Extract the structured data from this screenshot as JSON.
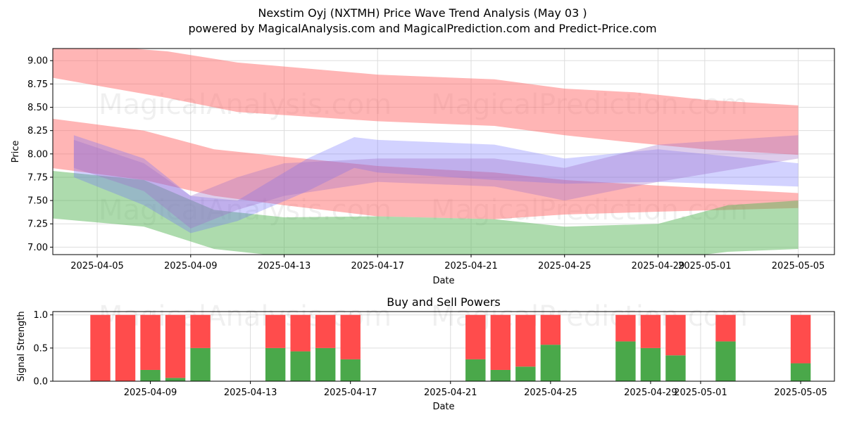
{
  "title": "Nexstim Oyj (NXTMH) Price Wave Trend Analysis (May 03 )",
  "subtitle": "powered by MagicalAnalysis.com and MagicalPrediction.com and Predict-Price.com",
  "watermarks": [
    "MagicalAnalysis.com",
    "MagicalPrediction.com"
  ],
  "colors": {
    "red_band": "#ff6b6b",
    "green_band": "#5cb85c",
    "blue_band": "#6b6bff",
    "buy": "#4aa84a",
    "sell": "#ff4c4c"
  },
  "chart_data": [
    {
      "type": "area",
      "title": "",
      "xlabel": "Date",
      "ylabel": "Price",
      "ylim": [
        6.92,
        9.13
      ],
      "xlim": [
        "2025-04-03",
        "2025-05-06"
      ],
      "grid": true,
      "x_ticks": [
        "2025-04-05",
        "2025-04-09",
        "2025-04-13",
        "2025-04-17",
        "2025-04-21",
        "2025-04-25",
        "2025-04-29",
        "2025-05-01",
        "2025-05-05"
      ],
      "y_ticks": [
        "7.00",
        "7.25",
        "7.50",
        "7.75",
        "8.00",
        "8.25",
        "8.50",
        "8.75",
        "9.00"
      ],
      "bands": [
        {
          "color": "red",
          "dates": [
            "2025-04-03",
            "2025-04-08",
            "2025-04-11",
            "2025-04-17",
            "2025-04-22",
            "2025-04-25",
            "2025-04-28",
            "2025-05-01",
            "2025-05-05"
          ],
          "upper": [
            9.2,
            9.1,
            8.98,
            8.85,
            8.8,
            8.7,
            8.66,
            8.58,
            8.52
          ],
          "lower": [
            8.82,
            8.6,
            8.45,
            8.35,
            8.3,
            8.2,
            8.12,
            8.05,
            7.99
          ]
        },
        {
          "color": "red",
          "dates": [
            "2025-04-03",
            "2025-04-07",
            "2025-04-10",
            "2025-04-13",
            "2025-04-17",
            "2025-04-22",
            "2025-04-25",
            "2025-04-29",
            "2025-05-05"
          ],
          "upper": [
            8.38,
            8.25,
            8.05,
            7.97,
            7.87,
            7.8,
            7.72,
            7.66,
            7.58
          ],
          "lower": [
            7.85,
            7.72,
            7.55,
            7.45,
            7.33,
            7.3,
            7.35,
            7.38,
            7.42
          ]
        },
        {
          "color": "green",
          "dates": [
            "2025-04-03",
            "2025-04-07",
            "2025-04-10",
            "2025-04-13",
            "2025-04-17",
            "2025-04-22",
            "2025-04-25",
            "2025-04-29",
            "2025-05-02",
            "2025-05-05"
          ],
          "upper": [
            7.82,
            7.72,
            7.4,
            7.32,
            7.33,
            7.3,
            7.22,
            7.25,
            7.45,
            7.5
          ],
          "lower": [
            7.31,
            7.22,
            6.98,
            6.9,
            6.88,
            6.85,
            6.86,
            6.86,
            6.95,
            6.98
          ]
        },
        {
          "color": "blue",
          "dates": [
            "2025-04-04",
            "2025-04-07",
            "2025-04-09",
            "2025-04-11",
            "2025-04-14",
            "2025-04-16",
            "2025-04-17",
            "2025-04-22",
            "2025-04-25",
            "2025-04-29",
            "2025-05-05"
          ],
          "upper": [
            8.2,
            7.95,
            7.55,
            7.5,
            7.95,
            8.18,
            8.15,
            8.1,
            7.95,
            8.05,
            7.9
          ],
          "lower": [
            7.75,
            7.45,
            7.15,
            7.28,
            7.6,
            7.85,
            7.8,
            7.72,
            7.68,
            7.7,
            7.65
          ]
        },
        {
          "color": "purple",
          "dates": [
            "2025-04-04",
            "2025-04-07",
            "2025-04-09",
            "2025-04-11",
            "2025-04-13",
            "2025-04-17",
            "2025-04-22",
            "2025-04-25",
            "2025-04-29",
            "2025-05-05"
          ],
          "upper": [
            8.15,
            7.9,
            7.55,
            7.75,
            7.9,
            7.95,
            7.95,
            7.85,
            8.1,
            8.2
          ],
          "lower": [
            7.85,
            7.6,
            7.2,
            7.4,
            7.55,
            7.7,
            7.65,
            7.5,
            7.7,
            7.95
          ]
        }
      ]
    },
    {
      "type": "bar",
      "title": "Buy and Sell Powers",
      "xlabel": "Date",
      "ylabel": "Signal Strength",
      "ylim": [
        0,
        1.05
      ],
      "y_ticks": [
        "0.0",
        "0.5",
        "1.0"
      ],
      "x_ticks": [
        "2025-04-09",
        "2025-04-13",
        "2025-04-17",
        "2025-04-21",
        "2025-04-25",
        "2025-04-29",
        "2025-05-01",
        "2025-05-05"
      ],
      "grid": true,
      "dates": [
        "2025-04-07",
        "2025-04-08",
        "2025-04-09",
        "2025-04-10",
        "2025-04-11",
        "2025-04-14",
        "2025-04-15",
        "2025-04-16",
        "2025-04-17",
        "2025-04-22",
        "2025-04-23",
        "2025-04-24",
        "2025-04-25",
        "2025-04-28",
        "2025-04-29",
        "2025-04-30",
        "2025-05-02",
        "2025-05-05"
      ],
      "series": [
        {
          "name": "Buy",
          "values": [
            0,
            0,
            0.17,
            0.05,
            0.5,
            0.5,
            0.45,
            0.5,
            0.33,
            0.33,
            0.17,
            0.22,
            0.55,
            0.6,
            0.5,
            0.39,
            0.6,
            0.27
          ]
        },
        {
          "name": "Sell",
          "values": [
            1,
            1,
            0.83,
            0.95,
            0.5,
            0.5,
            0.55,
            0.5,
            0.67,
            0.67,
            0.83,
            0.78,
            0.45,
            0.4,
            0.5,
            0.61,
            0.4,
            0.73
          ]
        }
      ]
    }
  ]
}
